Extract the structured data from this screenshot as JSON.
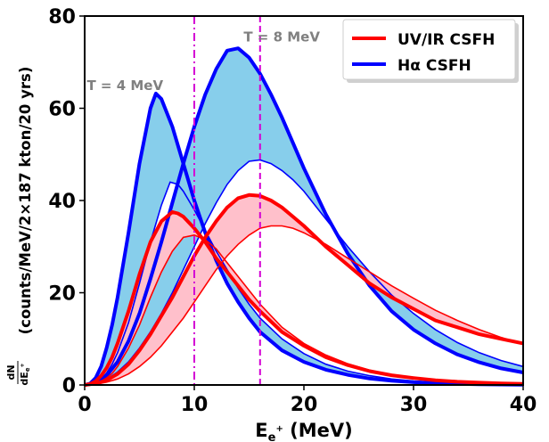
{
  "chart_data": {
    "type": "area",
    "title": "",
    "xlabel": "E",
    "xlabel_sub": "e",
    "xlabel_sup": "+",
    "xlabel_unit": " (MeV)",
    "ylabel_frac_num": "dN",
    "ylabel_frac_den": "dE",
    "ylabel_frac_den_sub": "e",
    "ylabel_frac_den_sup": "+",
    "ylabel_text": "(counts/MeV/2×187 kton/20 yrs)",
    "xlim": [
      0,
      40
    ],
    "ylim": [
      0,
      80
    ],
    "xticks": [
      "0",
      "10",
      "20",
      "30",
      "40"
    ],
    "yticks": [
      "0",
      "20",
      "40",
      "60",
      "80"
    ],
    "grid": false,
    "legend_position": "top-right",
    "legend": [
      {
        "label": "UV/IR CSFH",
        "color": "#ff0000"
      },
      {
        "label": "Hα CSFH",
        "color": "#0000ff"
      }
    ],
    "annotations": [
      {
        "text": "T = 4 MeV",
        "x": 0.2,
        "y": 64,
        "vline": 10,
        "color": "#d400d4",
        "style": "dashdot"
      },
      {
        "text": "T = 8 MeV",
        "x": 14.5,
        "y": 74.5,
        "vline": 16,
        "color": "#d400d4",
        "style": "dashed"
      }
    ],
    "annotation_text_color": "#808080",
    "series": [
      {
        "name": "Hα CSFH",
        "color": "#0000ff",
        "band_fill": "#87ceeb",
        "T_MeV": 4,
        "upper": {
          "x": [
            0,
            0.5,
            1,
            1.5,
            2,
            2.5,
            3,
            4,
            5,
            6,
            6.5,
            7,
            8,
            9,
            10,
            11,
            12,
            13,
            14,
            15,
            16,
            18,
            20,
            22,
            24,
            26,
            28,
            30,
            32,
            34,
            36,
            38,
            40
          ],
          "y": [
            0,
            0.3,
            1.5,
            4,
            8,
            13,
            19,
            33,
            48,
            60,
            63.2,
            62,
            56,
            48,
            40,
            33,
            27,
            22,
            18,
            14.5,
            11.5,
            7.5,
            5,
            3.3,
            2.2,
            1.4,
            0.9,
            0.6,
            0.4,
            0.25,
            0.15,
            0.1,
            0.05
          ]
        },
        "lower": {
          "x": [
            0,
            0.5,
            1,
            1.5,
            2,
            2.5,
            3,
            4,
            5,
            6,
            7,
            7.8,
            8.5,
            9,
            10,
            11,
            12,
            13,
            14,
            15,
            16,
            18,
            20,
            22,
            24,
            26,
            28,
            30,
            32,
            34,
            36,
            38,
            40
          ],
          "y": [
            0,
            0.1,
            0.5,
            1.3,
            2.6,
            4.5,
            7,
            13.5,
            22,
            31,
            39,
            44,
            43.5,
            42,
            38,
            33.5,
            29,
            25,
            21,
            17.5,
            14.5,
            10,
            6.8,
            4.5,
            3,
            2,
            1.3,
            0.85,
            0.55,
            0.35,
            0.22,
            0.14,
            0.09
          ]
        }
      },
      {
        "name": "Hα CSFH",
        "color": "#0000ff",
        "band_fill": "#87ceeb",
        "T_MeV": 8,
        "upper": {
          "x": [
            0,
            1,
            2,
            3,
            4,
            5,
            6,
            7,
            8,
            9,
            10,
            11,
            12,
            13,
            14,
            15,
            16,
            17,
            18,
            19,
            20,
            22,
            24,
            26,
            28,
            30,
            32,
            34,
            36,
            38,
            40
          ],
          "y": [
            0,
            0.5,
            2,
            5,
            9.5,
            15.5,
            23,
            31,
            39.5,
            48,
            56,
            63,
            68.5,
            72.5,
            73,
            71,
            67.5,
            63,
            58,
            52.5,
            47,
            37,
            28.5,
            21.5,
            16,
            12,
            9,
            6.6,
            4.9,
            3.6,
            2.7
          ]
        },
        "lower": {
          "x": [
            0,
            1,
            2,
            3,
            4,
            5,
            6,
            7,
            8,
            9,
            10,
            11,
            12,
            13,
            14,
            15,
            16,
            17,
            18,
            19,
            20,
            22,
            24,
            26,
            28,
            30,
            32,
            34,
            36,
            38,
            40
          ],
          "y": [
            0,
            0.3,
            1.2,
            2.8,
            5,
            8,
            11.5,
            15.5,
            20,
            25,
            30,
            35,
            39.5,
            43.5,
            46.5,
            48.5,
            48.8,
            48,
            46.5,
            44.5,
            42,
            36,
            30,
            24.5,
            19.5,
            15.5,
            12,
            9.2,
            7,
            5.3,
            4
          ]
        }
      },
      {
        "name": "UV/IR CSFH",
        "color": "#ff0000",
        "band_fill": "#ffc0cb",
        "T_MeV": 4,
        "upper": {
          "x": [
            0,
            0.5,
            1,
            1.5,
            2,
            2.5,
            3,
            4,
            5,
            6,
            7,
            8,
            8.5,
            9,
            10,
            11,
            12,
            13,
            14,
            15,
            16,
            18,
            20,
            22,
            24,
            26,
            28,
            30,
            32,
            34,
            36,
            38,
            40
          ],
          "y": [
            0,
            0.2,
            0.8,
            2,
            3.7,
            6,
            9,
            16,
            24,
            31,
            35.5,
            37.5,
            37.2,
            36.5,
            34,
            31,
            27.5,
            24.5,
            21.5,
            18.5,
            16,
            11.5,
            8.5,
            6,
            4.3,
            3,
            2.1,
            1.5,
            1,
            0.7,
            0.5,
            0.35,
            0.25
          ]
        },
        "lower": {
          "x": [
            0,
            0.5,
            1,
            1.5,
            2,
            2.5,
            3,
            4,
            5,
            6,
            7,
            8,
            9,
            10,
            11,
            12,
            13,
            14,
            15,
            16,
            18,
            20,
            22,
            24,
            26,
            28,
            30,
            32,
            34,
            36,
            38,
            40
          ],
          "y": [
            0,
            0.1,
            0.3,
            0.8,
            1.5,
            2.5,
            4,
            8,
            13,
            19,
            24.5,
            29,
            32,
            32.5,
            31.5,
            29.5,
            26.5,
            23.5,
            20.5,
            17.5,
            12.5,
            9,
            6.5,
            4.6,
            3.2,
            2.2,
            1.6,
            1.1,
            0.75,
            0.5,
            0.35,
            0.25
          ]
        }
      },
      {
        "name": "UV/IR CSFH",
        "color": "#ff0000",
        "band_fill": "#ffc0cb",
        "T_MeV": 8,
        "upper": {
          "x": [
            0,
            1,
            2,
            3,
            4,
            5,
            6,
            7,
            8,
            9,
            10,
            11,
            12,
            13,
            14,
            15,
            16,
            17,
            18,
            19,
            20,
            22,
            24,
            26,
            28,
            30,
            32,
            34,
            36,
            38,
            40
          ],
          "y": [
            0,
            0.3,
            1,
            2.4,
            4.5,
            7.5,
            11,
            15,
            19,
            23.5,
            28,
            32,
            35.5,
            38.5,
            40.5,
            41.2,
            41,
            40,
            38.5,
            36.5,
            34.5,
            30,
            26,
            22,
            19,
            16.5,
            14,
            12.5,
            11,
            10,
            9
          ]
        },
        "lower": {
          "x": [
            0,
            1,
            2,
            3,
            4,
            5,
            6,
            7,
            8,
            9,
            10,
            11,
            12,
            13,
            14,
            15,
            16,
            17,
            18,
            19,
            20,
            22,
            24,
            26,
            28,
            30,
            32,
            34,
            36,
            38,
            40
          ],
          "y": [
            0,
            0.15,
            0.6,
            1.3,
            2.4,
            4,
            6,
            8.5,
            11.5,
            14.5,
            18,
            21.5,
            25,
            28,
            30.5,
            32.5,
            34,
            34.5,
            34.5,
            34,
            33,
            30.5,
            27.5,
            24.5,
            21.5,
            18.8,
            16.2,
            14,
            12,
            10.3,
            8.8
          ]
        }
      }
    ]
  }
}
